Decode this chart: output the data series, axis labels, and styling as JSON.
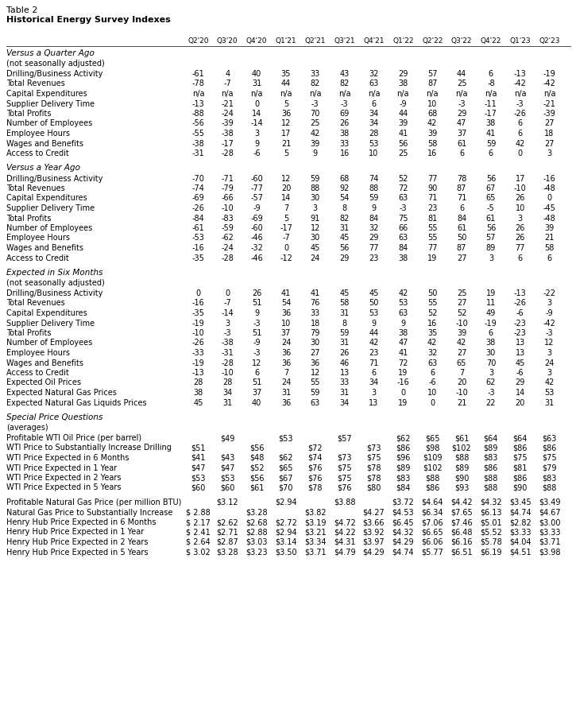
{
  "title1": "Table 2",
  "title2": "Historical Energy Survey Indexes",
  "col_headers": [
    "Q2'20",
    "Q3'20",
    "Q4'20",
    "Q1'21",
    "Q2'21",
    "Q3'21",
    "Q4'21",
    "Q1'22",
    "Q2'22",
    "Q3'22",
    "Q4'22",
    "Q1'23",
    "Q2'23"
  ],
  "section1_title": "Versus a Quarter Ago",
  "section1_sub": "(not seasonally adjusted)",
  "section1_rows": [
    [
      "Drilling/Business Activity",
      "-61",
      "4",
      "40",
      "35",
      "33",
      "43",
      "32",
      "29",
      "57",
      "44",
      "6",
      "-13",
      "-19"
    ],
    [
      "Total Revenues",
      "-78",
      "-7",
      "31",
      "44",
      "82",
      "82",
      "63",
      "38",
      "87",
      "25",
      "-8",
      "-42",
      "-42"
    ],
    [
      "Capital Expenditures",
      "n/a",
      "n/a",
      "n/a",
      "n/a",
      "n/a",
      "n/a",
      "n/a",
      "n/a",
      "n/a",
      "n/a",
      "n/a",
      "n/a",
      "n/a"
    ],
    [
      "Supplier Delivery Time",
      "-13",
      "-21",
      "0",
      "5",
      "-3",
      "-3",
      "6",
      "-9",
      "10",
      "-3",
      "-11",
      "-3",
      "-21"
    ],
    [
      "Total Profits",
      "-88",
      "-24",
      "14",
      "36",
      "70",
      "69",
      "34",
      "44",
      "68",
      "29",
      "-17",
      "-26",
      "-39"
    ],
    [
      "Number of Employees",
      "-56",
      "-39",
      "-14",
      "12",
      "25",
      "26",
      "34",
      "39",
      "42",
      "47",
      "38",
      "6",
      "27"
    ],
    [
      "Employee Hours",
      "-55",
      "-38",
      "3",
      "17",
      "42",
      "38",
      "28",
      "41",
      "39",
      "37",
      "41",
      "6",
      "18"
    ],
    [
      "Wages and Benefits",
      "-38",
      "-17",
      "9",
      "21",
      "39",
      "33",
      "53",
      "56",
      "58",
      "61",
      "59",
      "42",
      "27"
    ],
    [
      "Access to Credit",
      "-31",
      "-28",
      "-6",
      "5",
      "9",
      "16",
      "10",
      "25",
      "16",
      "6",
      "6",
      "0",
      "3"
    ]
  ],
  "section2_title": "Versus a Year Ago",
  "section2_rows": [
    [
      "Drilling/Business Activity",
      "-70",
      "-71",
      "-60",
      "12",
      "59",
      "68",
      "74",
      "52",
      "77",
      "78",
      "56",
      "17",
      "-16"
    ],
    [
      "Total Revenues",
      "-74",
      "-79",
      "-77",
      "20",
      "88",
      "92",
      "88",
      "72",
      "90",
      "87",
      "67",
      "-10",
      "-48"
    ],
    [
      "Capital Expenditures",
      "-69",
      "-66",
      "-57",
      "14",
      "30",
      "54",
      "59",
      "63",
      "71",
      "71",
      "65",
      "26",
      "0"
    ],
    [
      "Supplier Delivery Time",
      "-26",
      "-10",
      "-9",
      "7",
      "3",
      "8",
      "9",
      "-3",
      "23",
      "6",
      "-5",
      "10",
      "-45"
    ],
    [
      "Total Profits",
      "-84",
      "-83",
      "-69",
      "5",
      "91",
      "82",
      "84",
      "75",
      "81",
      "84",
      "61",
      "3",
      "-48"
    ],
    [
      "Number of Employees",
      "-61",
      "-59",
      "-60",
      "-17",
      "12",
      "31",
      "32",
      "66",
      "55",
      "61",
      "56",
      "26",
      "39"
    ],
    [
      "Employee Hours",
      "-53",
      "-62",
      "-46",
      "-7",
      "30",
      "45",
      "29",
      "63",
      "55",
      "50",
      "57",
      "26",
      "21"
    ],
    [
      "Wages and Benefits",
      "-16",
      "-24",
      "-32",
      "0",
      "45",
      "56",
      "77",
      "84",
      "77",
      "87",
      "89",
      "77",
      "58"
    ],
    [
      "Access to Credit",
      "-35",
      "-28",
      "-46",
      "-12",
      "24",
      "29",
      "23",
      "38",
      "19",
      "27",
      "3",
      "6",
      "6"
    ]
  ],
  "section3_title": "Expected in Six Months",
  "section3_sub": "(not seasonally adjusted)",
  "section3_rows": [
    [
      "Drilling/Business Activity",
      "0",
      "0",
      "26",
      "41",
      "41",
      "45",
      "45",
      "42",
      "50",
      "25",
      "19",
      "-13",
      "-22"
    ],
    [
      "Total Revenues",
      "-16",
      "-7",
      "51",
      "54",
      "76",
      "58",
      "50",
      "53",
      "55",
      "27",
      "11",
      "-26",
      "3"
    ],
    [
      "Capital Expenditures",
      "-35",
      "-14",
      "9",
      "36",
      "33",
      "31",
      "53",
      "63",
      "52",
      "52",
      "49",
      "-6",
      "-9"
    ],
    [
      "Supplier Delivery Time",
      "-19",
      "3",
      "-3",
      "10",
      "18",
      "8",
      "9",
      "9",
      "16",
      "-10",
      "-19",
      "-23",
      "-42"
    ],
    [
      "Total Profits",
      "-10",
      "-3",
      "51",
      "37",
      "79",
      "59",
      "44",
      "38",
      "35",
      "39",
      "6",
      "-23",
      "-3"
    ],
    [
      "Number of Employees",
      "-26",
      "-38",
      "-9",
      "24",
      "30",
      "31",
      "42",
      "47",
      "42",
      "42",
      "38",
      "13",
      "12"
    ],
    [
      "Employee Hours",
      "-33",
      "-31",
      "-3",
      "36",
      "27",
      "26",
      "23",
      "41",
      "32",
      "27",
      "30",
      "13",
      "3"
    ],
    [
      "Wages and Benefits",
      "-19",
      "-28",
      "12",
      "36",
      "36",
      "46",
      "71",
      "72",
      "63",
      "65",
      "70",
      "45",
      "24"
    ],
    [
      "Access to Credit",
      "-13",
      "-10",
      "6",
      "7",
      "12",
      "13",
      "6",
      "19",
      "6",
      "7",
      "3",
      "-6",
      "3"
    ],
    [
      "Expected Oil Prices",
      "28",
      "28",
      "51",
      "24",
      "55",
      "33",
      "34",
      "-16",
      "-6",
      "20",
      "62",
      "29",
      "42"
    ],
    [
      "Expected Natural Gas Prices",
      "38",
      "34",
      "37",
      "31",
      "59",
      "31",
      "3",
      "0",
      "10",
      "-10",
      "-3",
      "14",
      "53"
    ],
    [
      "Expected Natural Gas Liquids Prices",
      "45",
      "31",
      "40",
      "36",
      "63",
      "34",
      "13",
      "19",
      "0",
      "21",
      "22",
      "20",
      "31"
    ]
  ],
  "section4_title": "Special Price Questions",
  "section4_sub": "(averages)",
  "wti_rows": [
    [
      "Profitable WTI Oil Price (per barrel)",
      "",
      "$49",
      "",
      "$53",
      "",
      "$57",
      "",
      "$62",
      "$65",
      "$61",
      "$64",
      "$64",
      "$63"
    ],
    [
      "WTI Price to Substantially Increase Drilling",
      "$51",
      "",
      "$56",
      "",
      "$72",
      "",
      "$73",
      "$86",
      "$98",
      "$102",
      "$89",
      "$86",
      "$86"
    ],
    [
      "WTI Price Expected in 6 Months",
      "$41",
      "$43",
      "$48",
      "$62",
      "$74",
      "$73",
      "$75",
      "$96",
      "$109",
      "$88",
      "$83",
      "$75",
      "$75"
    ],
    [
      "WTI Price Expected in 1 Year",
      "$47",
      "$47",
      "$52",
      "$65",
      "$76",
      "$75",
      "$78",
      "$89",
      "$102",
      "$89",
      "$86",
      "$81",
      "$79"
    ],
    [
      "WTI Price Expected in 2 Years",
      "$53",
      "$53",
      "$56",
      "$67",
      "$76",
      "$75",
      "$78",
      "$83",
      "$88",
      "$90",
      "$88",
      "$86",
      "$83"
    ],
    [
      "WTI Price Expected in 5 Years",
      "$60",
      "$60",
      "$61",
      "$70",
      "$78",
      "$76",
      "$80",
      "$84",
      "$86",
      "$93",
      "$88",
      "$90",
      "$88"
    ]
  ],
  "gas_rows": [
    [
      "Profitable Natural Gas Price (per million BTU)",
      "",
      "$3.12",
      "",
      "$2.94",
      "",
      "$3.88",
      "",
      "$3.72",
      "$4.64",
      "$4.42",
      "$4.32",
      "$3.45",
      "$3.49"
    ],
    [
      "Natural Gas Price to Substantially Increase $ 2.88",
      "",
      "$3.28",
      "",
      "$3.82",
      "",
      "$4.27",
      "$4.53",
      "$6.34",
      "$7.65",
      "$6.13",
      "$4.74",
      "$4.67"
    ],
    [
      "Henry Hub Price Expected in 6 Months $ 2.17",
      "$2.62",
      "$2.68",
      "$2.72",
      "$3.19",
      "$4.72",
      "$3.66",
      "$6.45",
      "$7.06",
      "$7.46",
      "$5.01",
      "$2.82",
      "$3.00"
    ],
    [
      "Henry Hub Price Expected in 1 Year $ 2.41",
      "$2.71",
      "$2.88",
      "$2.94",
      "$3.21",
      "$4.22",
      "$3.92",
      "$4.32",
      "$6.65",
      "$6.48",
      "$5.52",
      "$3.33",
      "$3.33"
    ],
    [
      "Henry Hub Price Expected in 2 Years $ 2.64",
      "$2.87",
      "$3.03",
      "$3.14",
      "$3.34",
      "$4.31",
      "$3.97",
      "$4.29",
      "$6.06",
      "$6.16",
      "$5.78",
      "$4.04",
      "$3.71"
    ],
    [
      "Henry Hub Price Expected in 5 Years $ 3.02",
      "$3.28",
      "$3.23",
      "$3.50",
      "$3.71",
      "$4.79",
      "$4.29",
      "$4.74",
      "$5.77",
      "$6.51",
      "$6.19",
      "$4.51",
      "$3.98"
    ]
  ]
}
